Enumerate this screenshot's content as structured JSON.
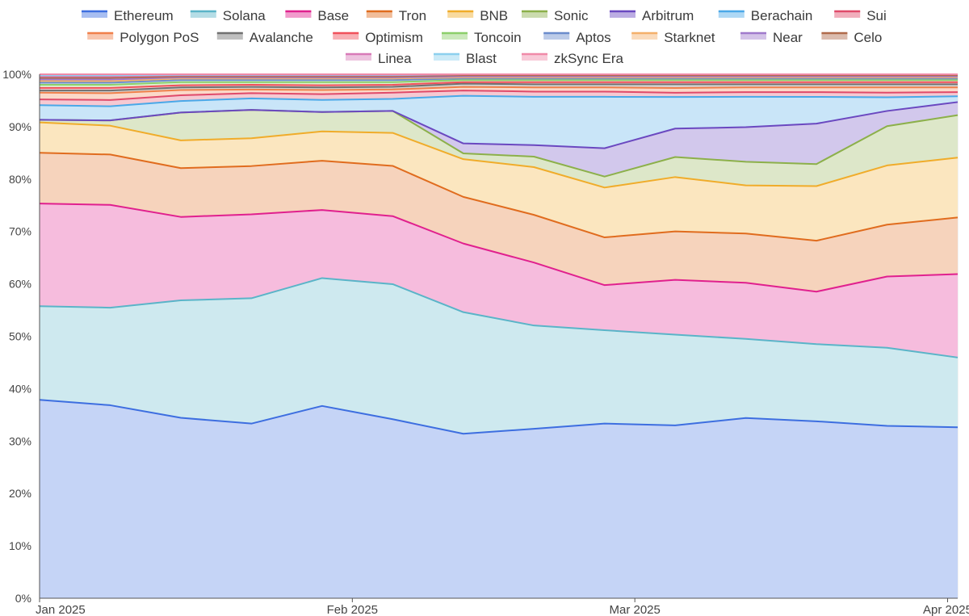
{
  "chart_data": {
    "type": "area",
    "stacked": "percent",
    "x": [
      "2025-01-01",
      "2025-01-08",
      "2025-01-15",
      "2025-01-22",
      "2025-01-29",
      "2025-02-05",
      "2025-02-12",
      "2025-02-19",
      "2025-02-26",
      "2025-03-05",
      "2025-03-12",
      "2025-03-19",
      "2025-03-26",
      "2025-04-02"
    ],
    "x_tick_labels": [
      {
        "x": "2025-01-01",
        "label": "Jan 2025"
      },
      {
        "x": "2025-02-01",
        "label": "Feb 2025"
      },
      {
        "x": "2025-03-01",
        "label": "Mar 2025"
      },
      {
        "x": "2025-04-01",
        "label": "Apr 2025"
      }
    ],
    "y_ticks": [
      "0%",
      "10%",
      "20%",
      "30%",
      "40%",
      "50%",
      "60%",
      "70%",
      "80%",
      "90%",
      "100%"
    ],
    "ylim": [
      0,
      100
    ],
    "grid": true,
    "legend_position": "top",
    "series": [
      {
        "name": "Ethereum",
        "color": "#3d6ee0",
        "values": [
          37.9,
          36.8,
          34.4,
          33.3,
          36.7,
          34.2,
          31.4,
          32.3,
          33.3,
          32.8,
          34.4,
          33.7,
          32.9,
          32.6
        ]
      },
      {
        "name": "Solana",
        "color": "#5ab4c8",
        "values": [
          17.9,
          18.6,
          22.4,
          23.9,
          24.4,
          25.8,
          23.2,
          19.7,
          17.8,
          17.2,
          15.1,
          14.7,
          14.9,
          13.3
        ]
      },
      {
        "name": "Base",
        "color": "#e0208e",
        "values": [
          19.6,
          19.6,
          15.9,
          16.0,
          13.0,
          13.0,
          13.1,
          12.0,
          8.6,
          10.4,
          10.7,
          10.0,
          13.6,
          15.9
        ]
      },
      {
        "name": "Tron",
        "color": "#e06c1e",
        "values": [
          9.7,
          9.6,
          9.3,
          9.2,
          9.4,
          9.6,
          8.9,
          9.1,
          9.1,
          9.2,
          9.4,
          9.7,
          9.9,
          10.8
        ]
      },
      {
        "name": "BNB",
        "color": "#f0ac2a",
        "values": [
          5.8,
          5.5,
          5.3,
          5.3,
          5.6,
          6.3,
          7.2,
          9.1,
          9.5,
          10.3,
          9.2,
          10.4,
          11.3,
          11.4
        ]
      },
      {
        "name": "Sonic",
        "color": "#8cb04a",
        "values": [
          0.5,
          1.0,
          5.3,
          5.4,
          3.7,
          4.2,
          1.1,
          2.0,
          2.1,
          3.8,
          4.5,
          4.2,
          7.5,
          8.1
        ]
      },
      {
        "name": "Arbitrum",
        "color": "#6a48c0",
        "values": [
          0,
          0,
          0,
          0,
          0,
          0,
          1.9,
          2.2,
          5.4,
          5.4,
          6.6,
          7.7,
          2.9,
          2.5
        ]
      },
      {
        "name": "Berachain",
        "color": "#4aa8e8",
        "values": [
          2.8,
          2.7,
          2.2,
          2.2,
          2.3,
          2.3,
          9.1,
          9.2,
          9.8,
          6.0,
          5.8,
          5.1,
          2.6,
          1.1
        ]
      },
      {
        "name": "Sui",
        "color": "#e04a6a",
        "values": [
          1.1,
          1.2,
          1.1,
          1.0,
          1.1,
          1.2,
          1.0,
          1.0,
          1.0,
          0.8,
          0.9,
          0.9,
          0.9,
          0.8
        ]
      },
      {
        "name": "Polygon PoS",
        "color": "#f0804a",
        "values": [
          1.3,
          1.3,
          1.0,
          0.7,
          0.8,
          0.6,
          0.7,
          0.8,
          0.8,
          0.9,
          0.9,
          0.9,
          1.0,
          0.9
        ]
      },
      {
        "name": "Avalanche",
        "color": "#707070",
        "values": [
          0.4,
          0.5,
          0.5,
          0.5,
          0.5,
          0.5,
          0.6,
          0.6,
          0.6,
          0.7,
          0.6,
          0.6,
          0.6,
          0.6
        ]
      },
      {
        "name": "Optimism",
        "color": "#f0505a",
        "values": [
          0.5,
          0.5,
          0.4,
          0.4,
          0.4,
          0.4,
          0.3,
          0.4,
          0.4,
          0.4,
          0.4,
          0.4,
          0.4,
          0.4
        ]
      },
      {
        "name": "Toncoin",
        "color": "#8ccf6a",
        "values": [
          0.6,
          0.6,
          0.6,
          0.5,
          0.6,
          0.5,
          0.4,
          0.4,
          0.4,
          0.4,
          0.4,
          0.4,
          0.4,
          0.4
        ]
      },
      {
        "name": "Aptos",
        "color": "#6a8ccc",
        "values": [
          0.4,
          0.4,
          0.4,
          0.4,
          0.4,
          0.4,
          0.3,
          0.3,
          0.3,
          0.3,
          0.3,
          0.3,
          0.3,
          0.3
        ]
      },
      {
        "name": "Starknet",
        "color": "#f4b06a",
        "values": [
          0.3,
          0.3,
          0.3,
          0.3,
          0.3,
          0.3,
          0.2,
          0.2,
          0.2,
          0.2,
          0.2,
          0.2,
          0.2,
          0.2
        ]
      },
      {
        "name": "Near",
        "color": "#a07acc",
        "values": [
          0.3,
          0.3,
          0.2,
          0.2,
          0.2,
          0.2,
          0.2,
          0.2,
          0.2,
          0.2,
          0.2,
          0.2,
          0.2,
          0.2
        ]
      },
      {
        "name": "Celo",
        "color": "#b06a4a",
        "values": [
          0.3,
          0.3,
          0.2,
          0.2,
          0.2,
          0.2,
          0.2,
          0.2,
          0.2,
          0.2,
          0.2,
          0.2,
          0.2,
          0.2
        ]
      },
      {
        "name": "Linea",
        "color": "#d87ab8",
        "values": [
          0.3,
          0.3,
          0.2,
          0.2,
          0.2,
          0.2,
          0.2,
          0.2,
          0.2,
          0.2,
          0.2,
          0.2,
          0.2,
          0.2
        ]
      },
      {
        "name": "Blast",
        "color": "#8cd0ee",
        "values": [
          0.2,
          0.2,
          0.1,
          0.1,
          0.1,
          0.1,
          0.0,
          0.0,
          0.0,
          0.0,
          0.0,
          0.0,
          0.0,
          0.0
        ]
      },
      {
        "name": "zkSync Era",
        "color": "#f08aa8",
        "values": [
          0.2,
          0.2,
          0.1,
          0.1,
          0.1,
          0.1,
          0.0,
          0.0,
          0.0,
          0.0,
          0.0,
          0.0,
          0.0,
          0.0
        ]
      }
    ]
  }
}
